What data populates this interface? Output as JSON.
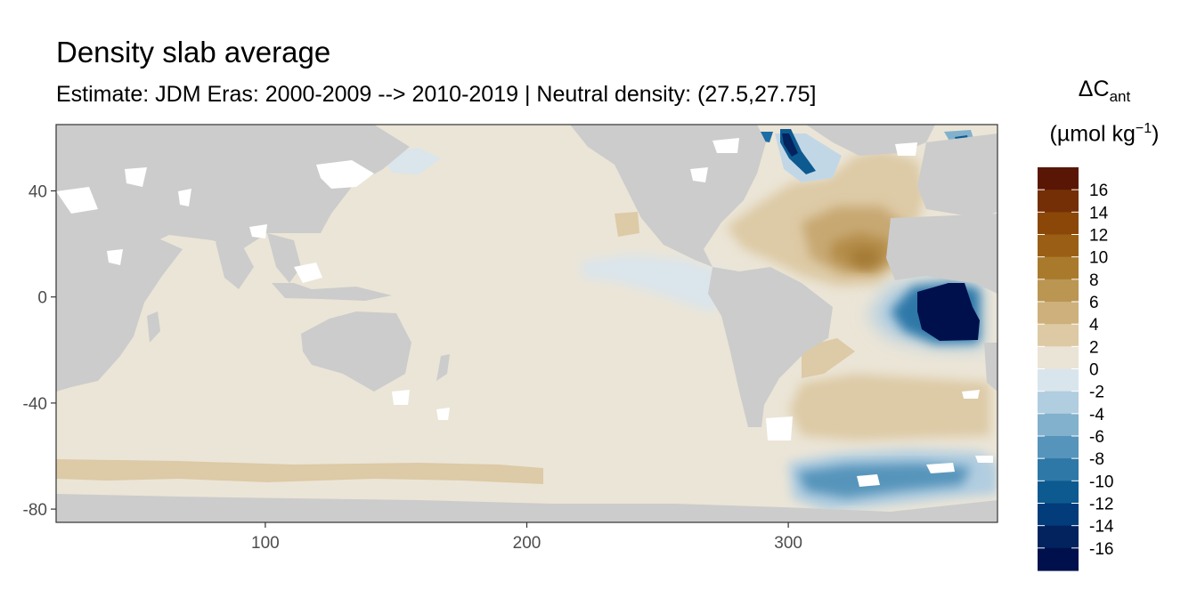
{
  "title": "Density slab average",
  "subtitle": "Estimate: JDM Eras: 2000-2009 --> 2010-2019 | Neutral density: (27.5,27.75]",
  "chart_data": {
    "type": "heatmap",
    "x_axis": {
      "ticks": [
        100,
        200,
        300
      ],
      "range": [
        20,
        380
      ]
    },
    "y_axis": {
      "ticks": [
        40,
        0,
        -40,
        -80
      ],
      "range": [
        -85,
        65
      ]
    },
    "grid": false,
    "legend": {
      "title_symbol": "ΔC",
      "title_subscript": "ant",
      "unit_base": "(µmol kg",
      "unit_sup": "−1",
      "unit_close": ")",
      "placement": "right",
      "labels": [
        "16",
        "14",
        "12",
        "10",
        "8",
        "6",
        "4",
        "2",
        "0",
        "-2",
        "-4",
        "-6",
        "-8",
        "-10",
        "-12",
        "-14",
        "-16"
      ],
      "colors": [
        "#5a1604",
        "#742f06",
        "#8b4708",
        "#9a5f14",
        "#aa7a2c",
        "#bb9552",
        "#cdb07c",
        "#ddcaa4",
        "#eae4d6",
        "#d9e5ec",
        "#b1cde0",
        "#82b1cd",
        "#5694bb",
        "#2e78a8",
        "#0d5a91",
        "#023c7a",
        "#02235e",
        "#00104d"
      ]
    },
    "colors": {
      "land": "#cccccc",
      "no_data": "#ffffff",
      "panel_border": "#333333"
    }
  }
}
